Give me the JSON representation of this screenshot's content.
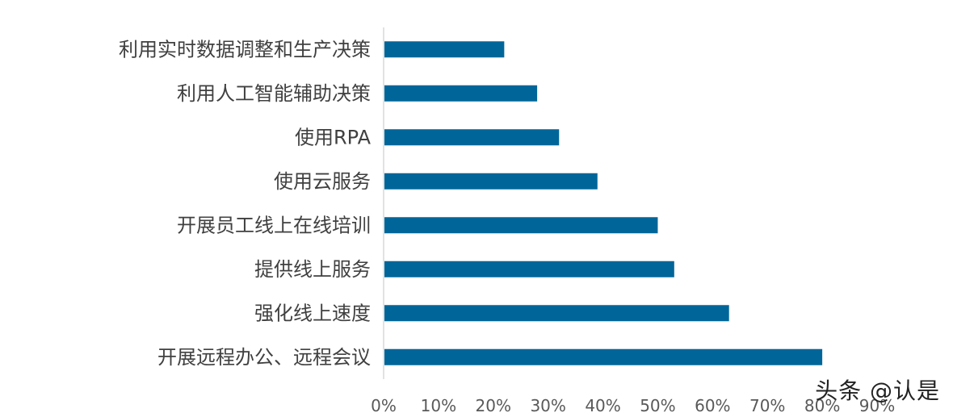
{
  "chart_data": {
    "type": "bar",
    "orientation": "horizontal",
    "categories": [
      "利用实时数据调整和生产决策",
      "利用人工智能辅助决策",
      "使用RPA",
      "使用云服务",
      "开展员工线上在线培训",
      "提供线上服务",
      "强化线上速度",
      "开展远程办公、远程会议"
    ],
    "values": [
      0.22,
      0.28,
      0.32,
      0.39,
      0.5,
      0.53,
      0.63,
      0.8
    ],
    "xlim": [
      0,
      0.9
    ],
    "x_ticks": [
      0,
      0.1,
      0.2,
      0.3,
      0.4,
      0.5,
      0.6,
      0.7,
      0.8,
      0.9
    ],
    "x_tick_labels": [
      "0%",
      "10%",
      "20%",
      "30%",
      "40%",
      "50%",
      "60%",
      "70%",
      "80%",
      "90%"
    ],
    "grid": false,
    "legend": "none",
    "bar_color": "#006699"
  },
  "watermark": "头条 @认是"
}
